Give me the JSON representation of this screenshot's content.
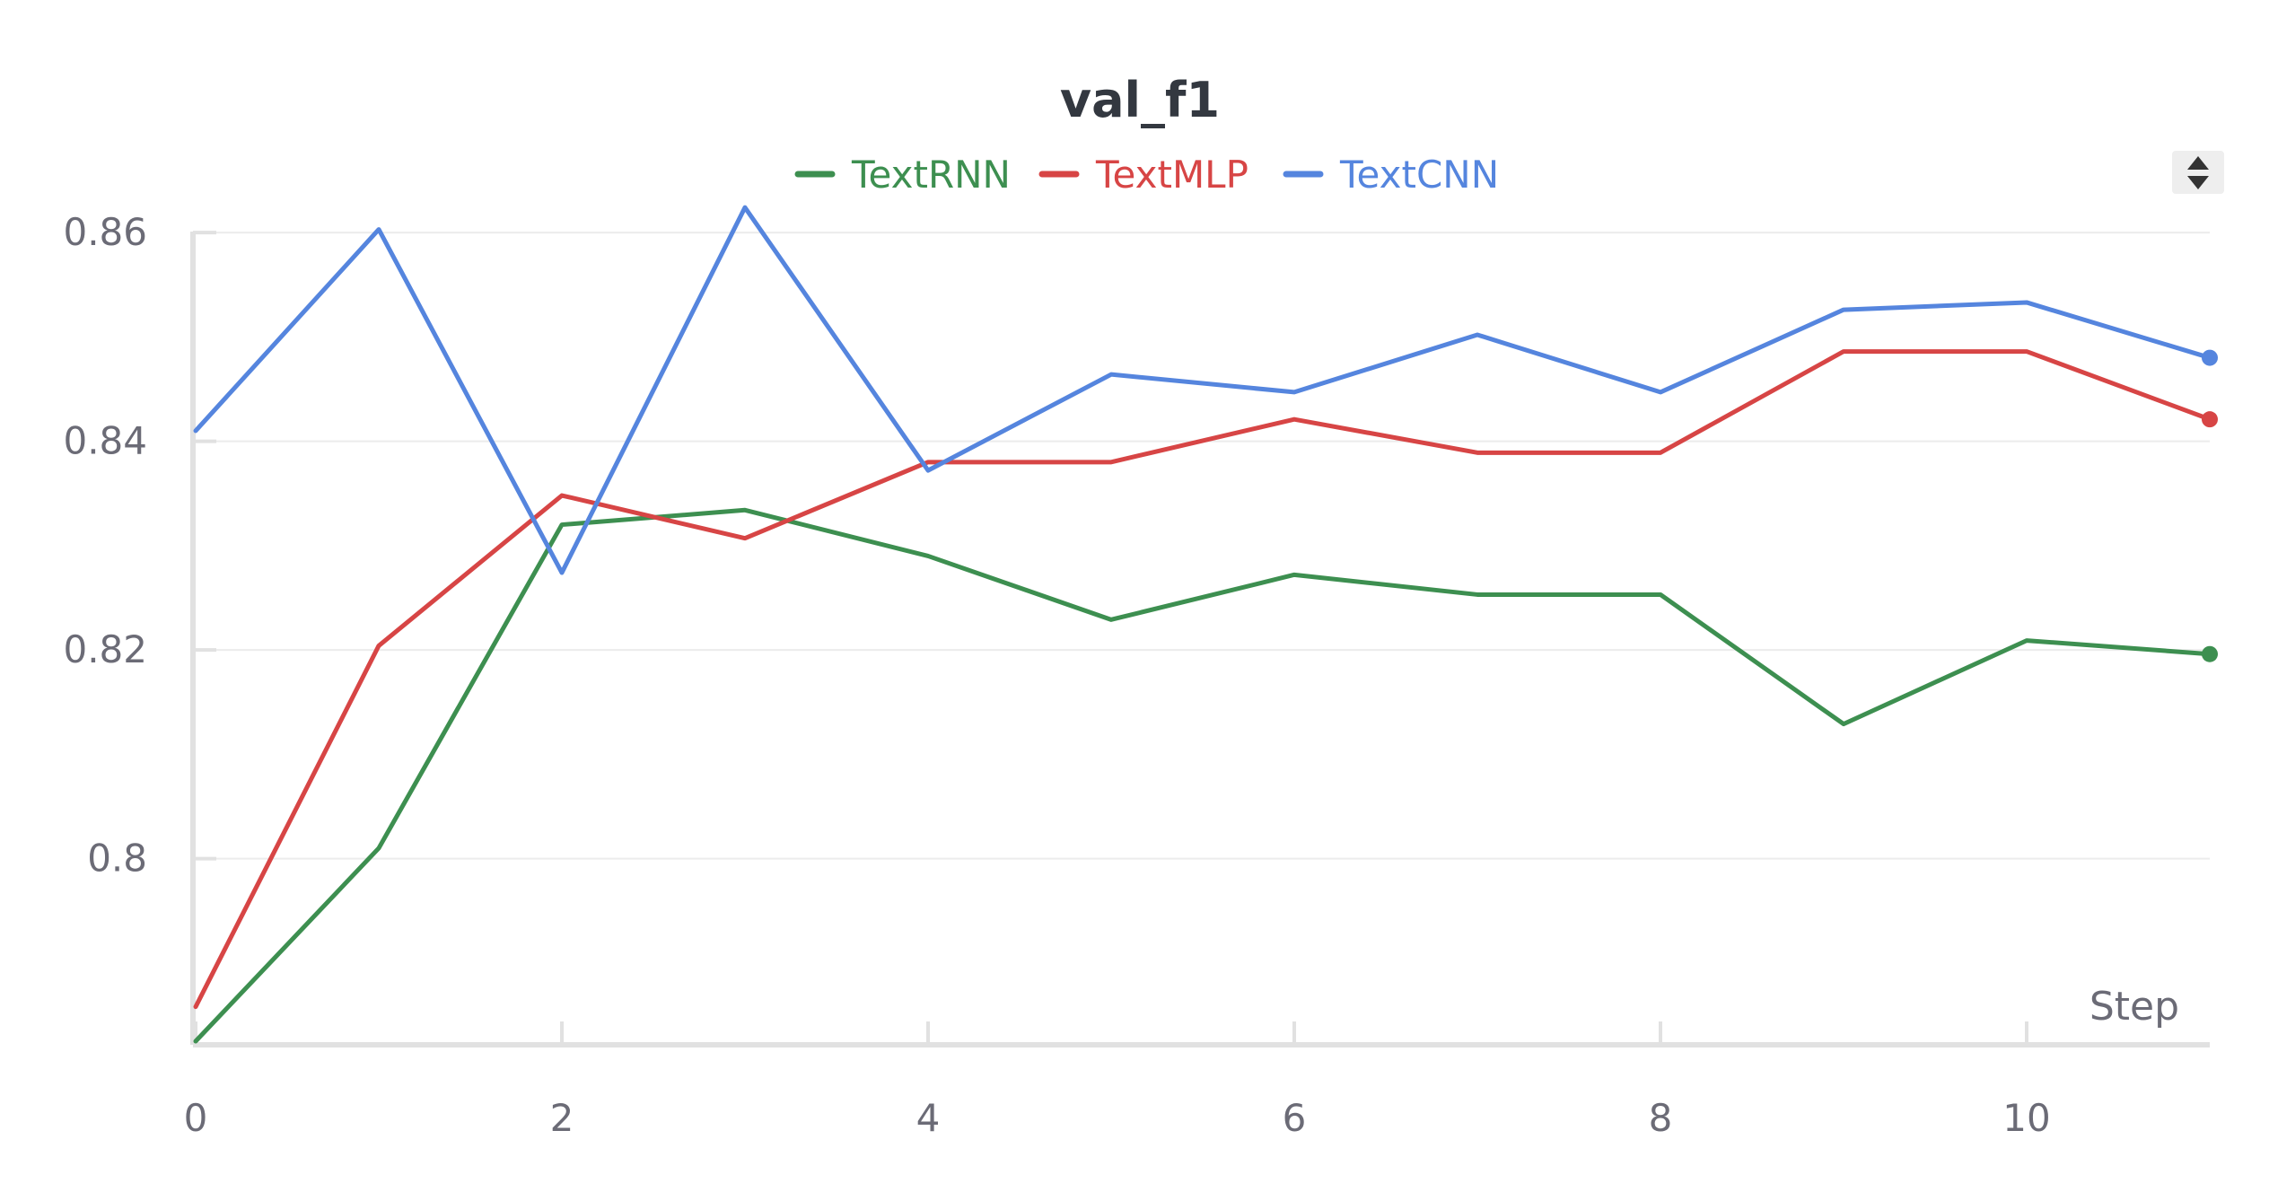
{
  "chart_data": {
    "type": "line",
    "title": "val_f1",
    "xlabel": "Step",
    "ylabel": "",
    "x": [
      0,
      1,
      2,
      3,
      4,
      5,
      6,
      7,
      8,
      9,
      10,
      11
    ],
    "xlim": [
      0,
      11
    ],
    "ylim": [
      0.7825,
      0.8625
    ],
    "xticks": [
      {
        "value": 0,
        "label": "0"
      },
      {
        "value": 2,
        "label": "2"
      },
      {
        "value": 4,
        "label": "4"
      },
      {
        "value": 6,
        "label": "6"
      },
      {
        "value": 8,
        "label": "8"
      },
      {
        "value": 10,
        "label": "10"
      }
    ],
    "yticks": [
      {
        "value": 0.8,
        "label": "0.8"
      },
      {
        "value": 0.82,
        "label": "0.82"
      },
      {
        "value": 0.84,
        "label": "0.84"
      },
      {
        "value": 0.86,
        "label": "0.86"
      }
    ],
    "grid": true,
    "legend_position": "top-center",
    "series": [
      {
        "name": "TextRNN",
        "color": "#3d8f50",
        "values": [
          0.7825,
          0.801,
          0.832,
          0.8334,
          0.829,
          0.8229,
          0.8272,
          0.8253,
          0.8253,
          0.8129,
          0.8209,
          0.8196
        ]
      },
      {
        "name": "TextMLP",
        "color": "#d74545",
        "values": [
          0.7858,
          0.8204,
          0.8348,
          0.8307,
          0.838,
          0.838,
          0.8421,
          0.8389,
          0.8389,
          0.8486,
          0.8486,
          0.8421
        ]
      },
      {
        "name": "TextCNN",
        "color": "#5585de",
        "values": [
          0.841,
          0.8603,
          0.8274,
          0.8624,
          0.8372,
          0.8464,
          0.8447,
          0.8502,
          0.8447,
          0.8526,
          0.8533,
          0.848
        ]
      }
    ]
  },
  "toolbar": {
    "sort_icon": "sort-updown-icon"
  }
}
